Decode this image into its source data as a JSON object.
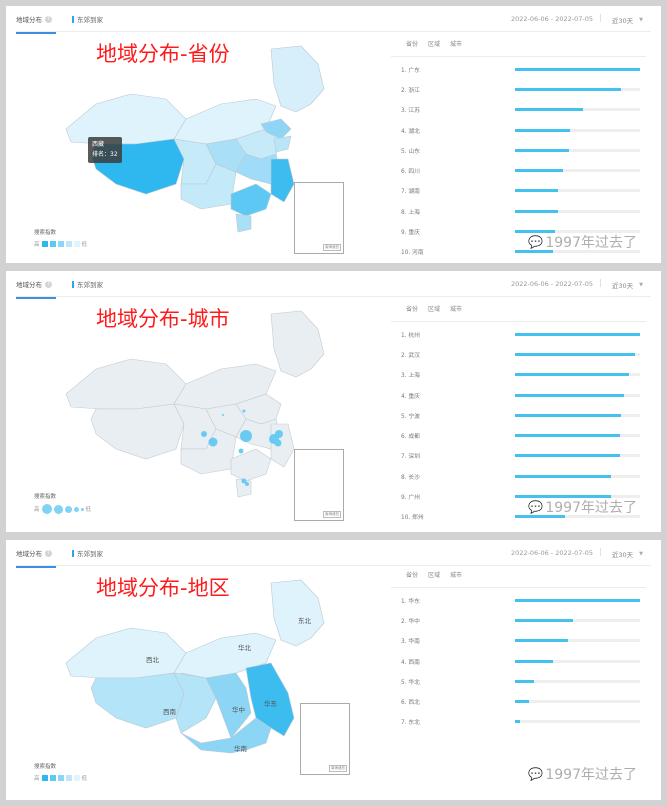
{
  "common": {
    "tab_main": "地域分布",
    "tab_brand": "东郊到家",
    "date_range": "2022-06-06 - 2022-07-05",
    "period": "近30天",
    "rank_tabs": [
      "省份",
      "区域",
      "城市"
    ],
    "legend_title": "搜索指数",
    "legend_high": "高",
    "legend_low": "低",
    "inset_label": "南海诸岛",
    "watermark": "1997年过去了",
    "bar_color": "#44c1ee"
  },
  "panels": [
    {
      "overlay_title": "地域分布-省份",
      "tooltip": {
        "name": "西藏",
        "rank_text": "排名：32"
      },
      "rankings": [
        {
          "label": "1. 广东",
          "pct": 100
        },
        {
          "label": "2. 浙江",
          "pct": 85
        },
        {
          "label": "3. 江苏",
          "pct": 54
        },
        {
          "label": "4. 湖北",
          "pct": 44
        },
        {
          "label": "5. 山东",
          "pct": 43
        },
        {
          "label": "6. 四川",
          "pct": 38
        },
        {
          "label": "7. 湖南",
          "pct": 34
        },
        {
          "label": "8. 上海",
          "pct": 34
        },
        {
          "label": "9. 重庆",
          "pct": 32
        },
        {
          "label": "10. 河南",
          "pct": 30
        }
      ]
    },
    {
      "overlay_title": "地域分布-城市",
      "rankings": [
        {
          "label": "1. 杭州",
          "pct": 100
        },
        {
          "label": "2. 武汉",
          "pct": 96
        },
        {
          "label": "3. 上海",
          "pct": 91
        },
        {
          "label": "4. 重庆",
          "pct": 87
        },
        {
          "label": "5. 宁波",
          "pct": 85
        },
        {
          "label": "6. 成都",
          "pct": 84
        },
        {
          "label": "7. 深圳",
          "pct": 84
        },
        {
          "label": "8. 长沙",
          "pct": 77
        },
        {
          "label": "9. 广州",
          "pct": 77
        },
        {
          "label": "10. 郑州",
          "pct": 40
        }
      ]
    },
    {
      "overlay_title": "地域分布-地区",
      "region_labels": [
        "东北",
        "华北",
        "西北",
        "西南",
        "华中",
        "华东",
        "华南"
      ],
      "rankings": [
        {
          "label": "1. 华东",
          "pct": 100
        },
        {
          "label": "2. 华中",
          "pct": 46
        },
        {
          "label": "3. 华南",
          "pct": 42
        },
        {
          "label": "4. 西南",
          "pct": 30
        },
        {
          "label": "5. 华北",
          "pct": 15
        },
        {
          "label": "6. 西北",
          "pct": 11
        },
        {
          "label": "7. 东北",
          "pct": 4
        }
      ]
    }
  ]
}
